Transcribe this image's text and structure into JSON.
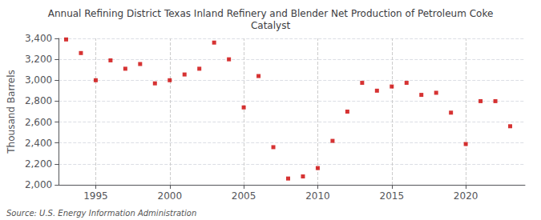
{
  "chart_data": {
    "type": "scatter",
    "title": "Annual Refining District Texas Inland Refinery and Blender Net Production of Petroleum Coke\nCatalyst",
    "ylabel": "Thousand Barrels",
    "annotation": "Source: U.S. Energy Information Administration",
    "x": [
      1993,
      1994,
      1995,
      1996,
      1997,
      1998,
      1999,
      2000,
      2001,
      2002,
      2003,
      2004,
      2005,
      2006,
      2007,
      2008,
      2009,
      2010,
      2011,
      2012,
      2013,
      2014,
      2015,
      2016,
      2017,
      2018,
      2019,
      2020,
      2021,
      2022,
      2023
    ],
    "values": [
      3390,
      3260,
      3000,
      3190,
      3110,
      3155,
      2970,
      3000,
      3055,
      3110,
      3360,
      3200,
      2740,
      3040,
      2360,
      2060,
      2080,
      2160,
      2420,
      2700,
      2975,
      2900,
      2940,
      2975,
      2860,
      2880,
      2690,
      2390,
      2800,
      2800,
      2560
    ],
    "color": "#cc0000",
    "marker": "square",
    "xlim": [
      1992.5,
      2024
    ],
    "xticks": [
      1995,
      2000,
      2005,
      2010,
      2015,
      2020
    ],
    "ylim": [
      2000,
      3400
    ],
    "yticks": [
      {
        "value": 2000,
        "label": "2,000"
      },
      {
        "value": 2200,
        "label": "2,200"
      },
      {
        "value": 2400,
        "label": "2,400"
      },
      {
        "value": 2600,
        "label": "2,600"
      },
      {
        "value": 2800,
        "label": "2,800"
      },
      {
        "value": 3000,
        "label": "3,000"
      },
      {
        "value": 3200,
        "label": "3,200"
      },
      {
        "value": 3400,
        "label": "3,400"
      }
    ],
    "grid": true
  }
}
